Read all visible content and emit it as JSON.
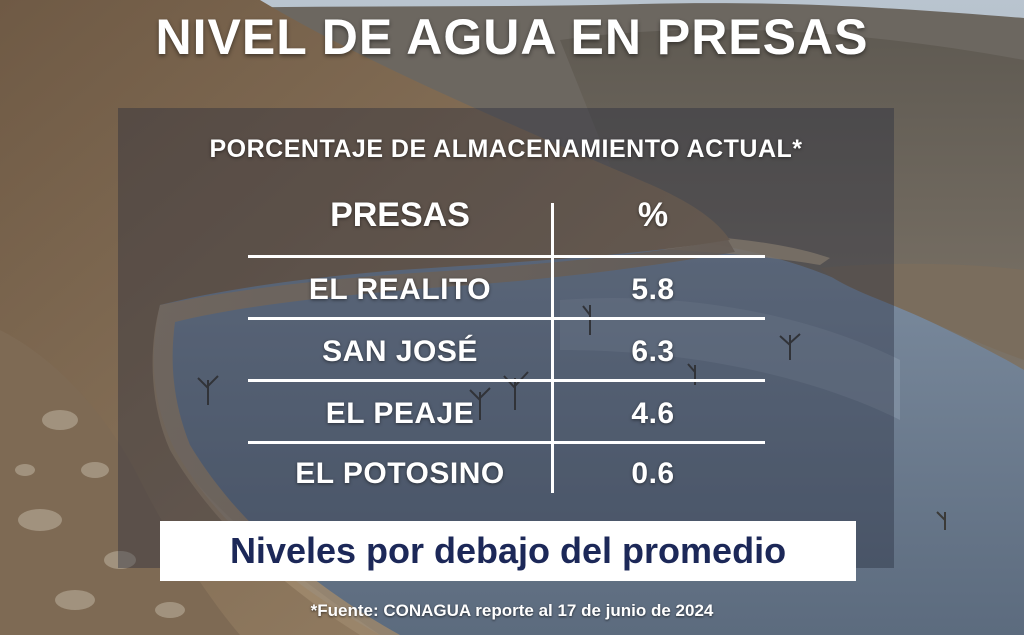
{
  "title": "NIVEL DE AGUA EN PRESAS",
  "subtitle": "PORCENTAJE DE ALMACENAMIENTO ACTUAL*",
  "table": {
    "headers": [
      "PRESAS",
      "%"
    ],
    "rows": [
      {
        "presa": "EL REALITO",
        "porcentaje": "5.8"
      },
      {
        "presa": "SAN JOSÉ",
        "porcentaje": "6.3"
      },
      {
        "presa": "EL PEAJE",
        "porcentaje": "4.6"
      },
      {
        "presa": "EL POTOSINO",
        "porcentaje": "0.6"
      }
    ]
  },
  "banner": "Niveles por debajo del promedio",
  "source": "*Fuente: CONAGUA reporte al 17 de junio de 2024",
  "colors": {
    "text": "#ffffff",
    "banner_text": "#1c2858",
    "banner_bg": "#ffffff"
  }
}
